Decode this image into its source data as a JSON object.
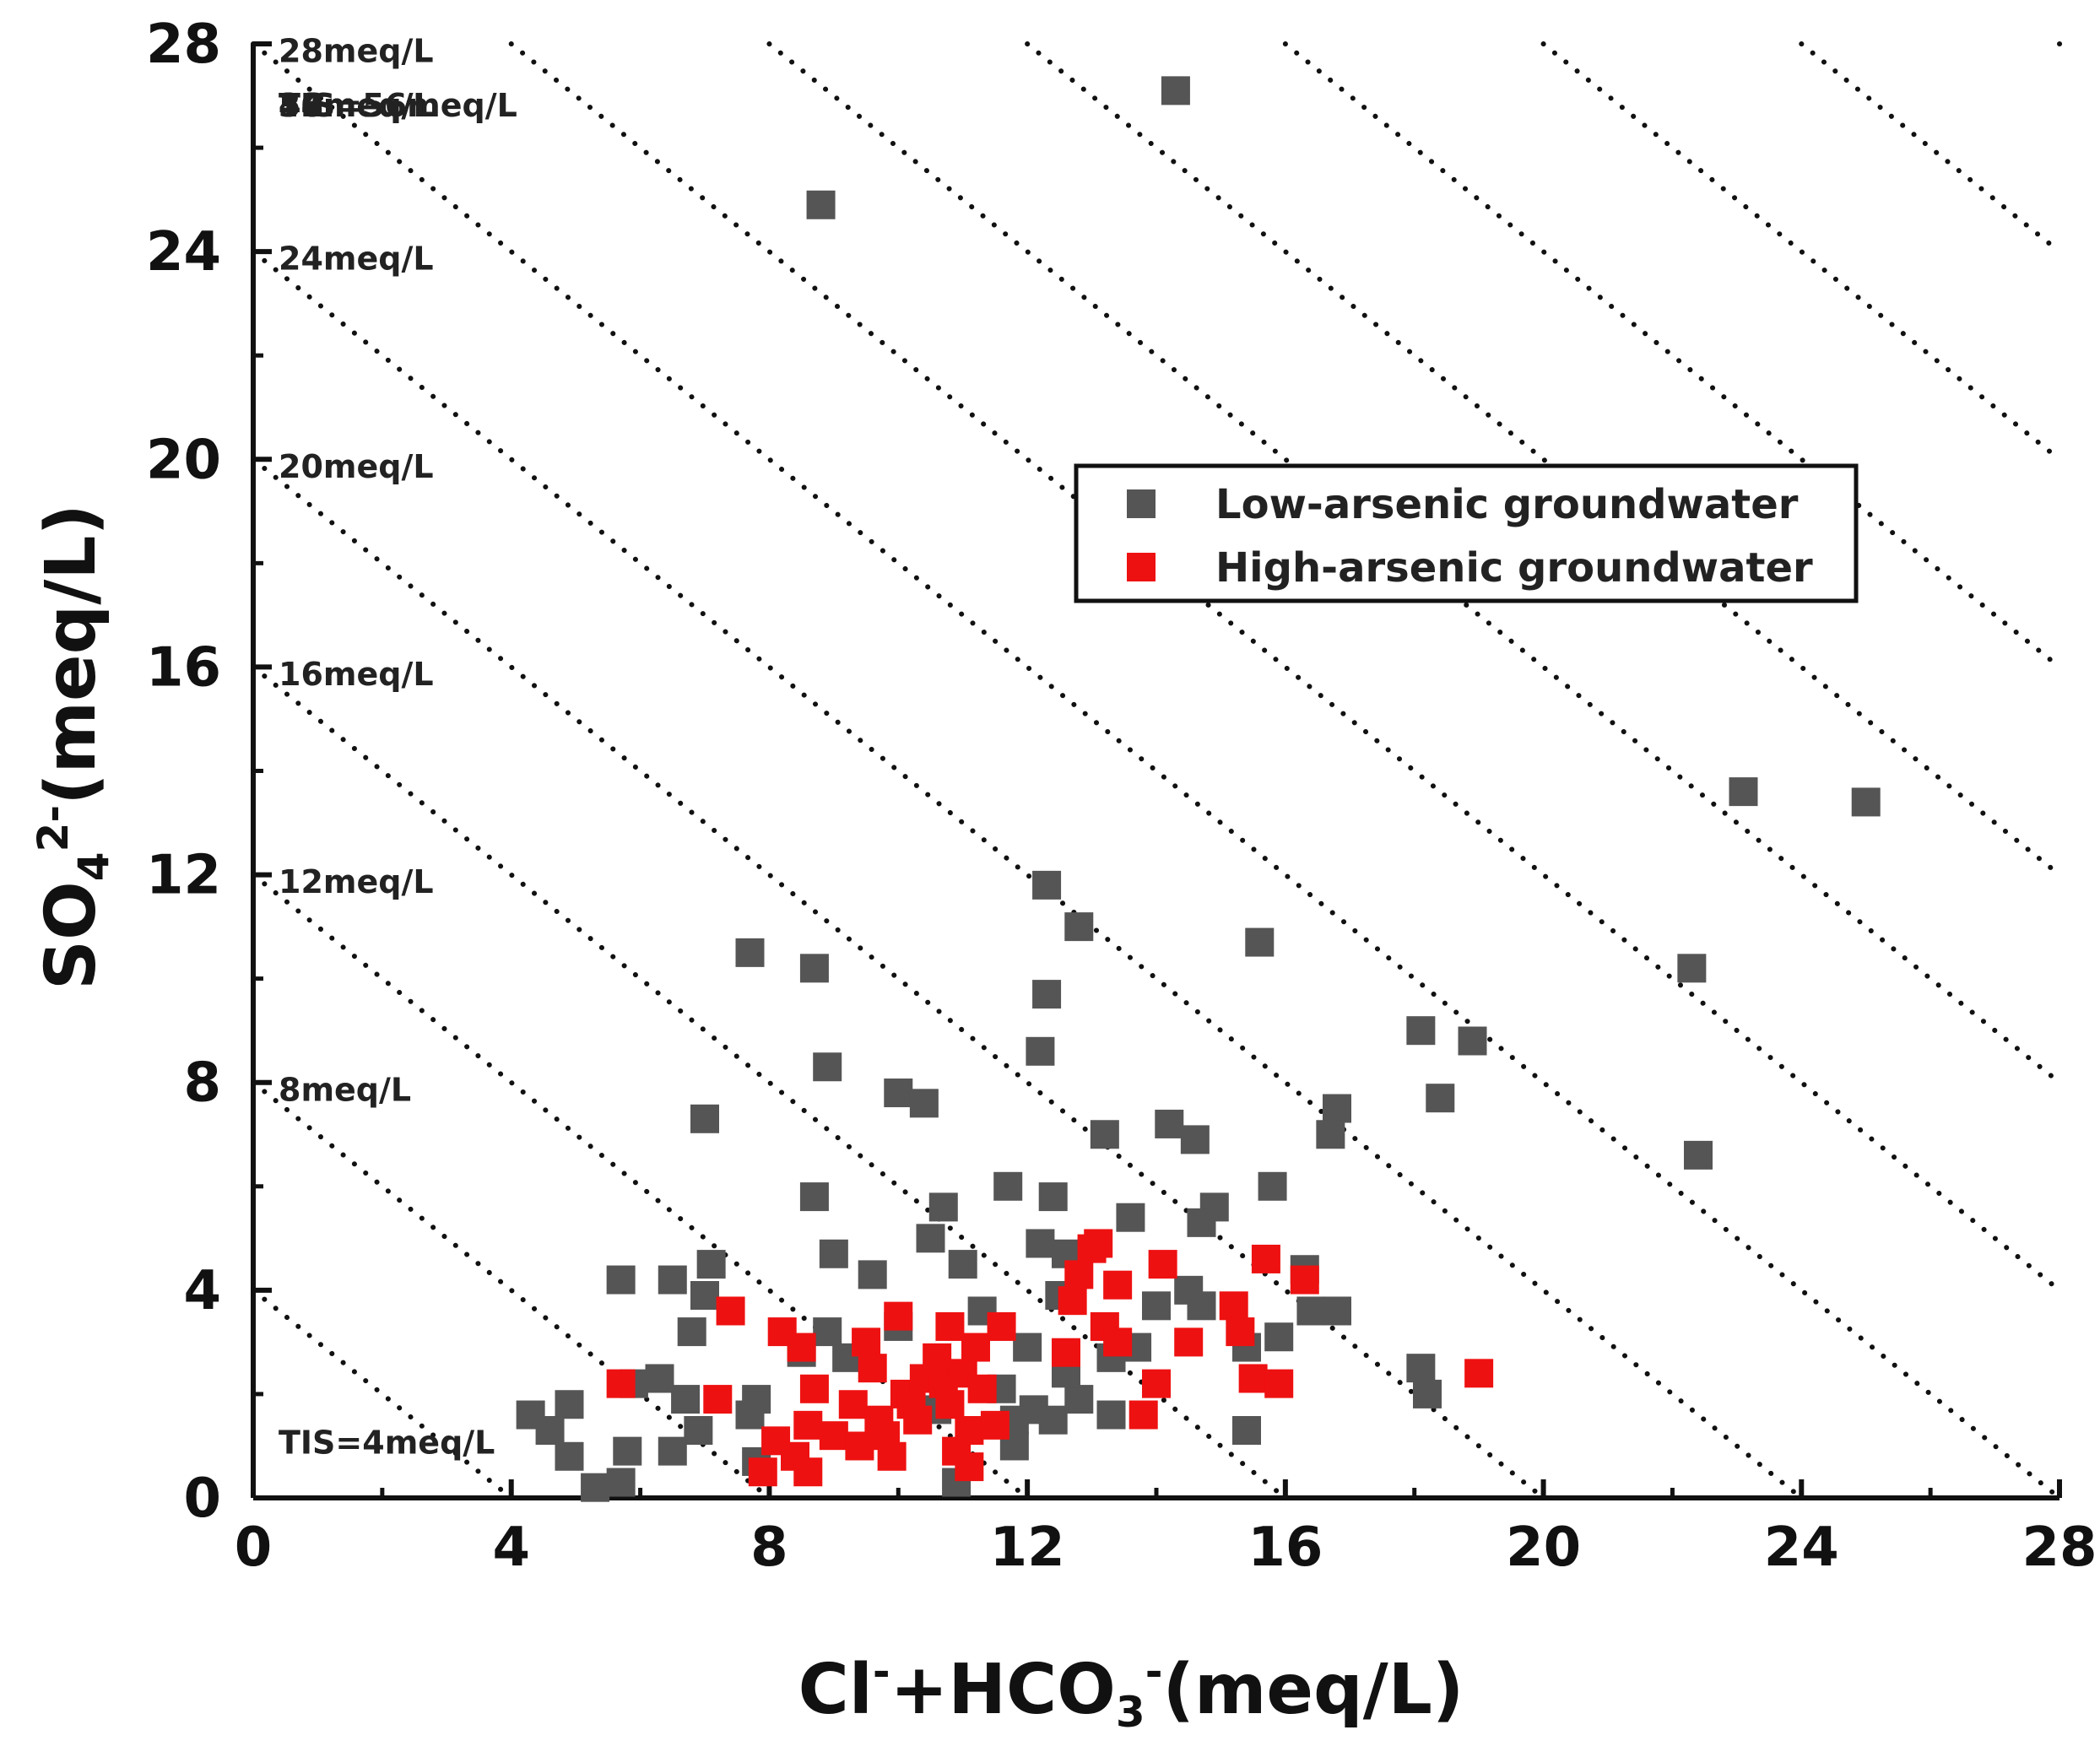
{
  "chart_data": {
    "type": "scatter",
    "title": "",
    "xlabel": {
      "main": "Cl",
      "sup1": "-",
      "mid": "+HCO",
      "sub": "3",
      "sup2": "-",
      "unit": "(meq/L)"
    },
    "ylabel": {
      "main": "SO",
      "sub": "4",
      "sup": "2-",
      "unit": "(meq/L)"
    },
    "xlim": [
      0,
      28
    ],
    "ylim": [
      0,
      28
    ],
    "xticks": [
      "0",
      "4",
      "8",
      "12",
      "16",
      "20",
      "24",
      "28"
    ],
    "yticks": [
      "0",
      "4",
      "8",
      "12",
      "16",
      "20",
      "24",
      "28"
    ],
    "tis_lines": [
      4,
      8,
      12,
      16,
      20,
      24,
      28,
      32,
      36,
      40,
      44,
      48,
      52,
      56
    ],
    "tis_labels": [
      {
        "tis": 56,
        "text": "TIS=56meq/L"
      },
      {
        "tis": 52,
        "text": "52meq/L"
      },
      {
        "tis": 48,
        "text": "48meq/L"
      },
      {
        "tis": 44,
        "text": "44meq/L"
      },
      {
        "tis": 40,
        "text": "40meq/L"
      },
      {
        "tis": 36,
        "text": "36meq/L"
      },
      {
        "tis": 32,
        "text": "32meq/L"
      },
      {
        "tis": 28,
        "text": "28meq/L"
      },
      {
        "tis": 24,
        "text": "24meq/L"
      },
      {
        "tis": 20,
        "text": "20meq/L"
      },
      {
        "tis": 16,
        "text": "16meq/L"
      },
      {
        "tis": 12,
        "text": "12meq/L"
      },
      {
        "tis": 8,
        "text": "8meq/L"
      },
      {
        "tis": 4,
        "text": "TIS=4meq/L"
      }
    ],
    "legend_position": "upper-right-center",
    "series": [
      {
        "name": "Low-arsenic groundwater",
        "color": "#555555",
        "points": [
          [
            14.3,
            27.1
          ],
          [
            8.8,
            24.9
          ],
          [
            23.1,
            13.6
          ],
          [
            25.0,
            13.4
          ],
          [
            15.6,
            10.7
          ],
          [
            22.3,
            10.2
          ],
          [
            12.3,
            11.8
          ],
          [
            12.8,
            11.0
          ],
          [
            7.7,
            10.5
          ],
          [
            8.7,
            10.2
          ],
          [
            12.3,
            9.7
          ],
          [
            12.2,
            8.6
          ],
          [
            18.1,
            9.0
          ],
          [
            18.9,
            8.8
          ],
          [
            8.9,
            8.3
          ],
          [
            10.0,
            7.8
          ],
          [
            10.4,
            7.6
          ],
          [
            7.0,
            7.3
          ],
          [
            14.2,
            7.2
          ],
          [
            13.2,
            7.0
          ],
          [
            14.6,
            6.9
          ],
          [
            16.8,
            7.5
          ],
          [
            16.7,
            7.0
          ],
          [
            18.4,
            7.7
          ],
          [
            22.4,
            6.6
          ],
          [
            11.7,
            6.0
          ],
          [
            12.4,
            5.8
          ],
          [
            15.8,
            6.0
          ],
          [
            8.7,
            5.8
          ],
          [
            10.7,
            5.6
          ],
          [
            13.6,
            5.4
          ],
          [
            14.9,
            5.6
          ],
          [
            14.7,
            5.3
          ],
          [
            10.5,
            5.0
          ],
          [
            12.2,
            4.9
          ],
          [
            12.6,
            4.7
          ],
          [
            11.0,
            4.5
          ],
          [
            9.0,
            4.7
          ],
          [
            9.6,
            4.3
          ],
          [
            7.1,
            4.5
          ],
          [
            6.5,
            4.2
          ],
          [
            5.7,
            4.2
          ],
          [
            7.0,
            3.9
          ],
          [
            11.3,
            3.6
          ],
          [
            14.0,
            3.7
          ],
          [
            14.5,
            4.0
          ],
          [
            14.7,
            3.7
          ],
          [
            16.3,
            4.4
          ],
          [
            16.4,
            3.6
          ],
          [
            16.8,
            3.6
          ],
          [
            12.5,
            3.9
          ],
          [
            10.0,
            3.3
          ],
          [
            8.9,
            3.2
          ],
          [
            6.8,
            3.2
          ],
          [
            8.5,
            2.8
          ],
          [
            9.2,
            2.7
          ],
          [
            12.0,
            2.9
          ],
          [
            13.3,
            2.7
          ],
          [
            13.7,
            2.9
          ],
          [
            15.4,
            2.9
          ],
          [
            15.9,
            3.1
          ],
          [
            18.1,
            2.5
          ],
          [
            18.2,
            2.0
          ],
          [
            5.9,
            2.2
          ],
          [
            6.3,
            2.3
          ],
          [
            7.8,
            1.9
          ],
          [
            11.6,
            2.1
          ],
          [
            12.1,
            1.7
          ],
          [
            12.4,
            1.5
          ],
          [
            12.8,
            1.9
          ],
          [
            13.3,
            1.6
          ],
          [
            10.6,
            1.7
          ],
          [
            11.8,
            1.5
          ],
          [
            12.6,
            2.4
          ],
          [
            15.4,
            1.3
          ],
          [
            4.3,
            1.6
          ],
          [
            4.9,
            1.8
          ],
          [
            4.6,
            1.3
          ],
          [
            6.7,
            1.9
          ],
          [
            6.9,
            1.3
          ],
          [
            5.8,
            0.9
          ],
          [
            6.5,
            0.9
          ],
          [
            4.9,
            0.8
          ],
          [
            7.8,
            0.7
          ],
          [
            11.8,
            1.0
          ],
          [
            5.3,
            0.2
          ],
          [
            5.7,
            0.3
          ],
          [
            10.9,
            0.3
          ],
          [
            7.7,
            1.6
          ]
        ]
      },
      {
        "name": "High-arsenic groundwater",
        "color": "#ee1111",
        "points": [
          [
            5.7,
            2.2
          ],
          [
            7.2,
            1.9
          ],
          [
            7.4,
            3.6
          ],
          [
            8.2,
            3.2
          ],
          [
            8.5,
            2.9
          ],
          [
            8.7,
            2.1
          ],
          [
            8.1,
            1.1
          ],
          [
            8.6,
            1.4
          ],
          [
            8.4,
            0.8
          ],
          [
            8.6,
            0.5
          ],
          [
            7.9,
            0.5
          ],
          [
            9.0,
            1.2
          ],
          [
            9.3,
            1.8
          ],
          [
            9.4,
            1.0
          ],
          [
            9.5,
            3.0
          ],
          [
            9.6,
            2.5
          ],
          [
            9.7,
            1.5
          ],
          [
            9.8,
            1.2
          ],
          [
            9.9,
            0.8
          ],
          [
            10.0,
            3.5
          ],
          [
            10.1,
            2.0
          ],
          [
            10.2,
            1.8
          ],
          [
            10.3,
            1.5
          ],
          [
            10.4,
            2.3
          ],
          [
            10.6,
            2.7
          ],
          [
            10.7,
            2.2
          ],
          [
            10.8,
            3.3
          ],
          [
            10.8,
            1.8
          ],
          [
            10.9,
            0.9
          ],
          [
            11.0,
            2.4
          ],
          [
            11.1,
            1.3
          ],
          [
            11.1,
            0.6
          ],
          [
            11.2,
            2.9
          ],
          [
            11.3,
            2.1
          ],
          [
            11.5,
            1.4
          ],
          [
            11.6,
            3.3
          ],
          [
            12.6,
            2.8
          ],
          [
            12.7,
            3.8
          ],
          [
            12.8,
            4.3
          ],
          [
            13.0,
            4.8
          ],
          [
            13.1,
            4.9
          ],
          [
            13.2,
            3.3
          ],
          [
            13.4,
            4.1
          ],
          [
            13.4,
            3.0
          ],
          [
            13.8,
            1.6
          ],
          [
            14.0,
            2.2
          ],
          [
            14.1,
            4.5
          ],
          [
            14.5,
            3.0
          ],
          [
            15.2,
            3.7
          ],
          [
            15.3,
            3.2
          ],
          [
            15.5,
            2.3
          ],
          [
            15.7,
            4.6
          ],
          [
            15.9,
            2.2
          ],
          [
            16.3,
            4.2
          ],
          [
            19.0,
            2.4
          ]
        ]
      }
    ]
  }
}
